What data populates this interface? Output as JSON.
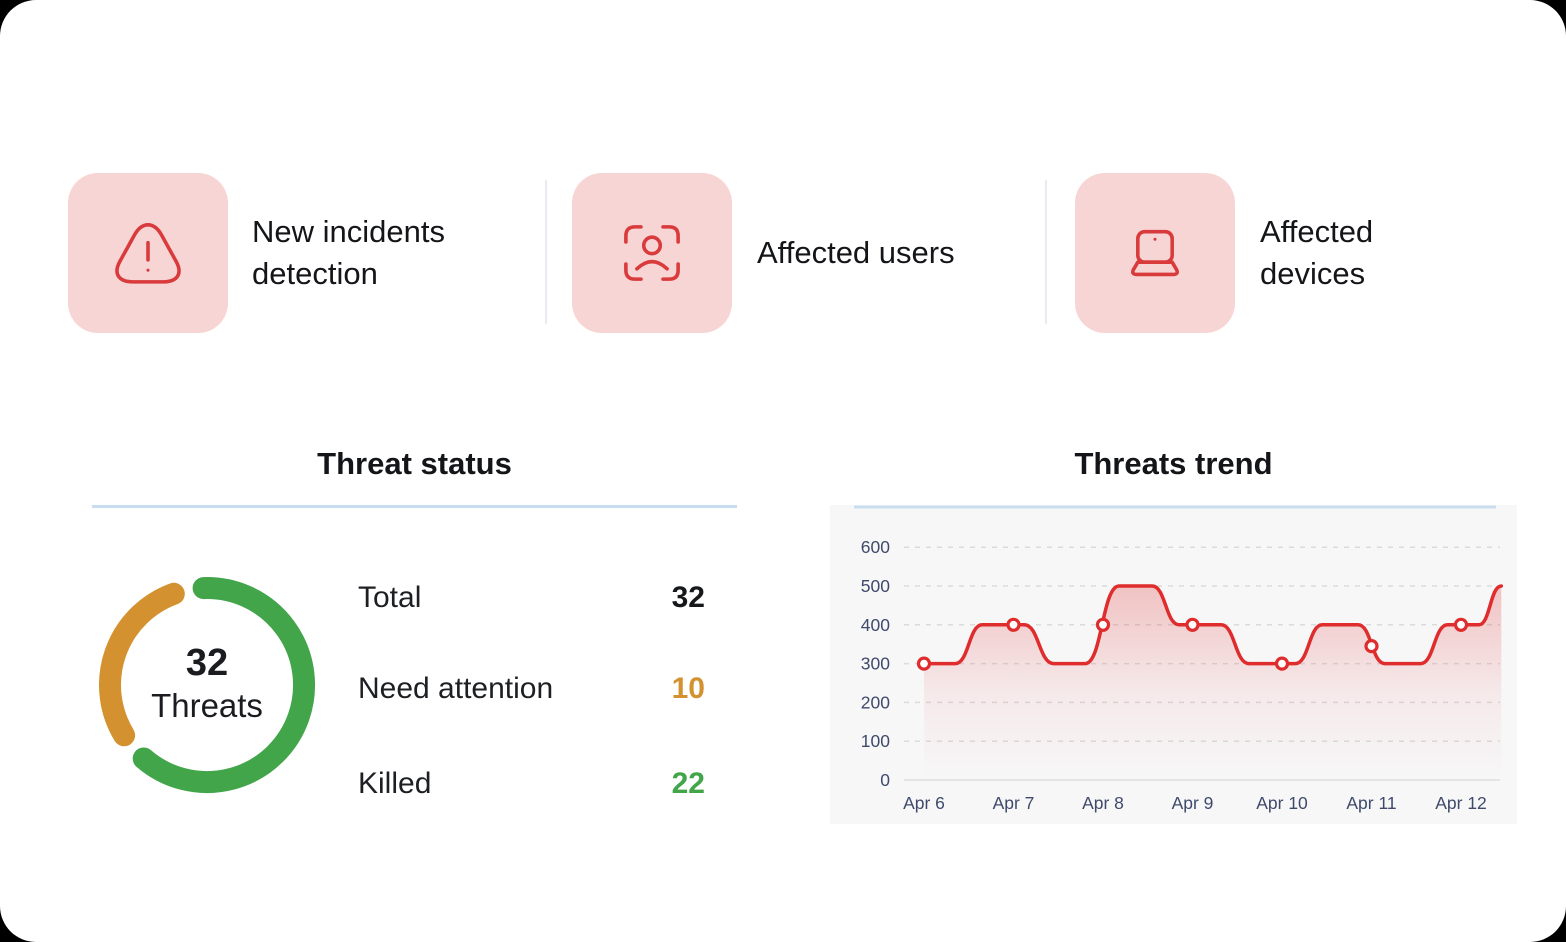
{
  "summary_cards": [
    {
      "label": "New incidents detection",
      "icon": "alert-triangle-icon"
    },
    {
      "label": "Affected users",
      "icon": "user-scan-icon"
    },
    {
      "label": "Affected devices",
      "icon": "laptop-icon"
    }
  ],
  "threat_status": {
    "title": "Threat status",
    "donut": {
      "center_value": "32",
      "center_label": "Threats",
      "total": 32,
      "segments": [
        {
          "name": "Killed",
          "value": 22,
          "color": "#42a54a"
        },
        {
          "name": "Need attention",
          "value": 10,
          "color": "#d4912f"
        }
      ]
    },
    "rows": [
      {
        "label": "Total",
        "value": "32",
        "color": "#17181a"
      },
      {
        "label": "Need attention",
        "value": "10",
        "color": "#d4912f"
      },
      {
        "label": "Killed",
        "value": "22",
        "color": "#42a54a"
      }
    ]
  },
  "threats_trend": {
    "title": "Threats trend"
  },
  "chart_data": {
    "type": "area",
    "title": "Threats trend",
    "x_labels": [
      "Apr 6",
      "Apr 7",
      "Apr 8",
      "Apr 9",
      "Apr 10",
      "Apr 11",
      "Apr 12"
    ],
    "y_ticks": [
      0,
      100,
      200,
      300,
      400,
      500,
      600
    ],
    "ylim": [
      0,
      600
    ],
    "grid": "dashed-horizontal",
    "legend_position": "none",
    "series": [
      {
        "name": "Threats",
        "color": "#df2c2c",
        "marker_fill": "#ffffff",
        "markers": [
          [
            0,
            300
          ],
          [
            1,
            400
          ],
          [
            2,
            400
          ],
          [
            3,
            400
          ],
          [
            4,
            300
          ],
          [
            5,
            345
          ],
          [
            6,
            400
          ]
        ],
        "curve": [
          [
            0,
            300
          ],
          [
            0.35,
            300
          ],
          [
            0.65,
            400
          ],
          [
            1.12,
            400
          ],
          [
            1.45,
            300
          ],
          [
            1.8,
            300
          ],
          [
            2.18,
            500
          ],
          [
            2.55,
            500
          ],
          [
            2.85,
            400
          ],
          [
            3.32,
            400
          ],
          [
            3.63,
            300
          ],
          [
            4.15,
            300
          ],
          [
            4.45,
            400
          ],
          [
            4.85,
            400
          ],
          [
            5.15,
            300
          ],
          [
            5.55,
            300
          ],
          [
            5.85,
            400
          ],
          [
            6.2,
            400
          ],
          [
            6.45,
            500
          ]
        ]
      }
    ]
  }
}
